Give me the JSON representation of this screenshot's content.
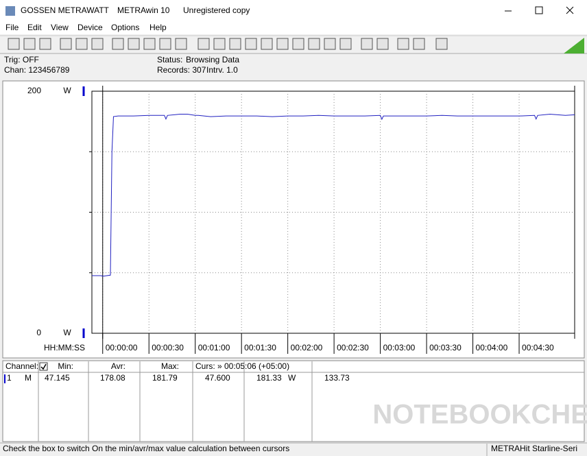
{
  "window": {
    "title_parts": [
      "GOSSEN METRAWATT",
      "METRAwin 10",
      "Unregistered copy"
    ]
  },
  "menu": [
    "File",
    "Edit",
    "View",
    "Device",
    "Options",
    "Help"
  ],
  "info": {
    "trig": "Trig: OFF",
    "chan": "Chan: 123456789",
    "status_label": "Status:",
    "status_value": "Browsing Data",
    "records": "Records: 307",
    "interval": "Intrv. 1.0"
  },
  "chart_data": {
    "type": "line",
    "y_unit": "W",
    "x_label": "HH:MM:SS",
    "xlim": [
      -7,
      306
    ],
    "ylim": [
      0,
      200
    ],
    "yticks": [
      0,
      200
    ],
    "ygrid": [
      50,
      100,
      150
    ],
    "xticks": [
      {
        "value": 0,
        "label": "00:00:00"
      },
      {
        "value": 30,
        "label": "00:00:30"
      },
      {
        "value": 60,
        "label": "00:01:00"
      },
      {
        "value": 90,
        "label": "00:01:30"
      },
      {
        "value": 120,
        "label": "00:02:00"
      },
      {
        "value": 150,
        "label": "00:02:30"
      },
      {
        "value": 180,
        "label": "00:03:00"
      },
      {
        "value": 210,
        "label": "00:03:30"
      },
      {
        "value": 240,
        "label": "00:04:00"
      },
      {
        "value": 270,
        "label": "00:04:30"
      }
    ],
    "cursors": [
      0,
      306
    ],
    "x": [
      -7,
      -1,
      0,
      5,
      6,
      7,
      10,
      20,
      30,
      40,
      41,
      42,
      50,
      55,
      60,
      62,
      70,
      80,
      90,
      100,
      110,
      120,
      130,
      140,
      150,
      160,
      170,
      180,
      181,
      182,
      190,
      200,
      210,
      220,
      230,
      240,
      250,
      260,
      270,
      280,
      281,
      282,
      290,
      300,
      306
    ],
    "series": [
      {
        "color": "#2020c0",
        "values": [
          47.6,
          47.6,
          47.1,
          48,
          150,
          179,
          179.5,
          179.5,
          180,
          180,
          177,
          180,
          181,
          181,
          180,
          180,
          179,
          179.5,
          179.5,
          179.5,
          179,
          179.5,
          179.5,
          180,
          179.5,
          179.5,
          179.5,
          180,
          176.8,
          179.5,
          179.5,
          179.5,
          179.5,
          180,
          179.5,
          179.5,
          179.5,
          179.5,
          179.5,
          180,
          177,
          180,
          181,
          180,
          180.5
        ]
      }
    ]
  },
  "table": {
    "headers": [
      "Channel:",
      "Min:",
      "Avr:",
      "Max:",
      "Curs: » 00:05:06 (+05:00)"
    ],
    "row": [
      "1",
      "M",
      "47.145",
      "178.08",
      "181.79",
      "47.600",
      "181.33",
      "W",
      "133.73"
    ]
  },
  "statusbar": [
    "Check the box to switch On the min/avr/max value calculation between cursors",
    "METRAHit Starline-Seri"
  ],
  "watermark": "NOTEBOOKCHECK"
}
